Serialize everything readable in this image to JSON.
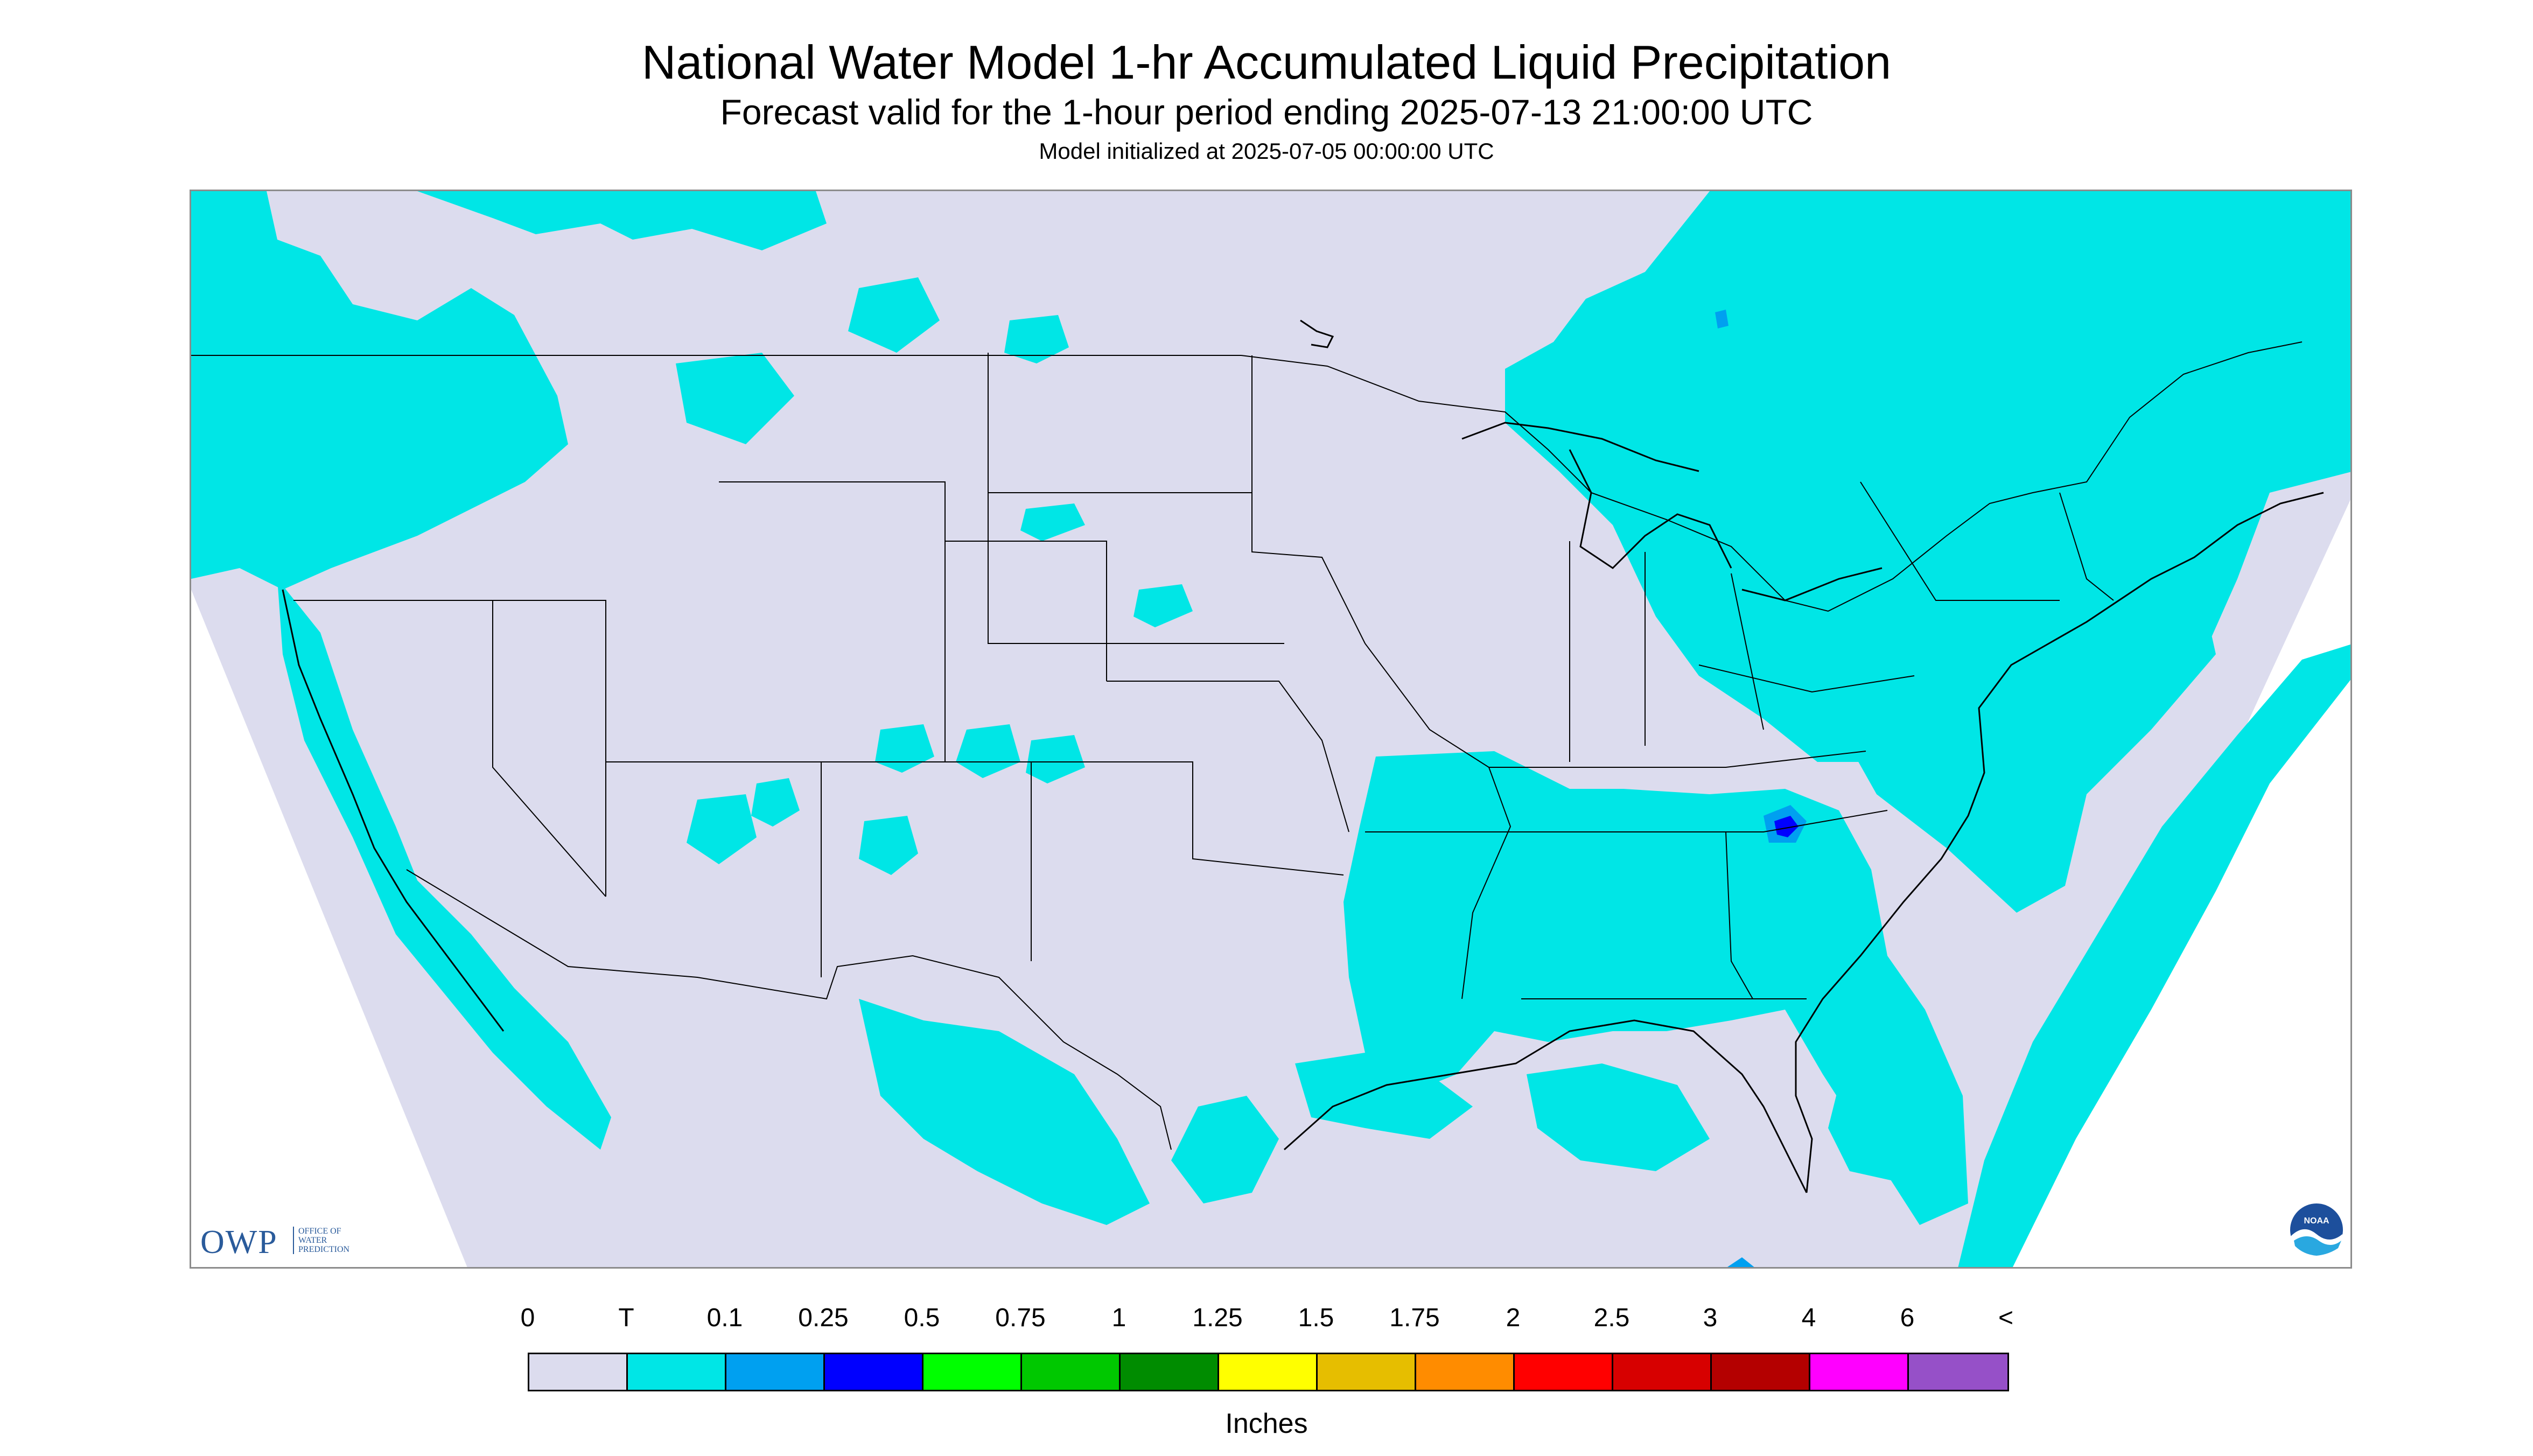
{
  "header": {
    "title": "National Water Model 1-hr Accumulated Liquid Precipitation",
    "subtitle": "Forecast valid for the 1-hour period ending 2025-07-13 21:00:00 UTC",
    "init_note": "Model initialized at 2025-07-05 00:00:00 UTC"
  },
  "map": {
    "background_color": "#dcdcee",
    "outside_domain_color": "#ffffff",
    "boundary_color": "#000000",
    "trace_color": "#00e6e6",
    "light_blue_color": "#00a0f0",
    "blue_color": "#0000ff",
    "icon": "map-conus-precipitation"
  },
  "logos": {
    "owp_mark": "OWP",
    "owp_text": "Office of Water Prediction",
    "noaa_text": "NOAA"
  },
  "legend": {
    "units": "Inches",
    "labels": [
      "0",
      "T",
      "0.1",
      "0.25",
      "0.5",
      "0.75",
      "1",
      "1.25",
      "1.5",
      "1.75",
      "2",
      "2.5",
      "3",
      "4",
      "6",
      "<"
    ],
    "colors": [
      "#dcdcee",
      "#00e6e6",
      "#00a0f0",
      "#0000ff",
      "#00ff00",
      "#00c800",
      "#008c00",
      "#ffff00",
      "#e6be00",
      "#ff8c00",
      "#ff0000",
      "#d70000",
      "#b40000",
      "#ff00ff",
      "#9650c8"
    ]
  }
}
